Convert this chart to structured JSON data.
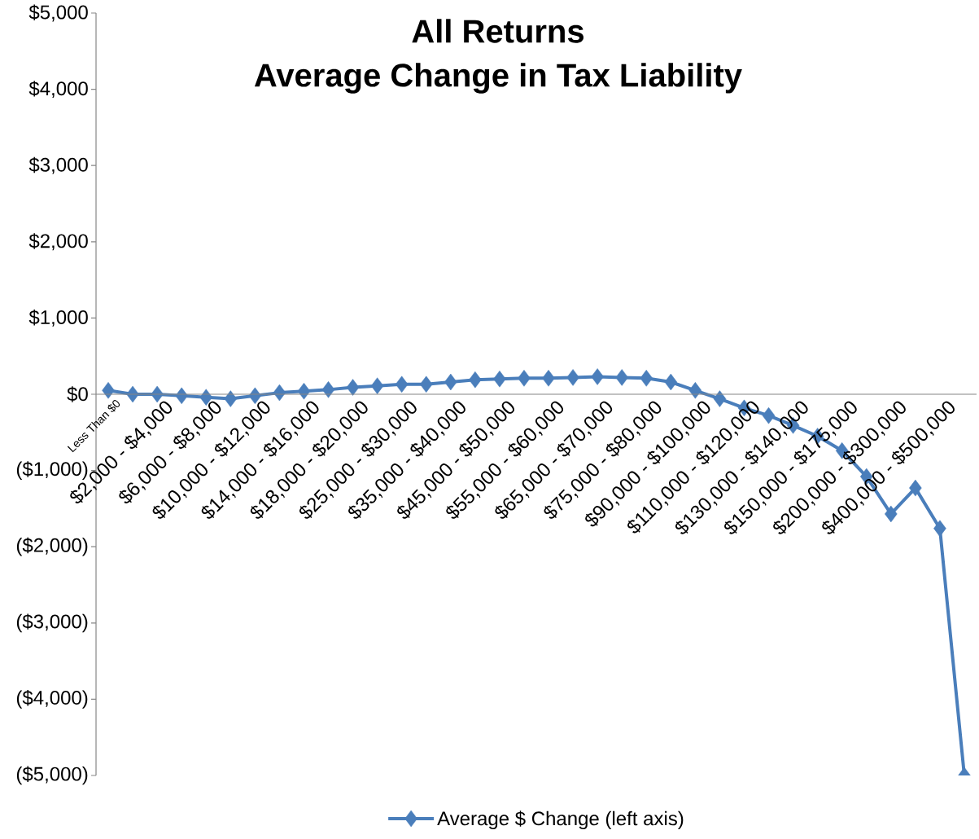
{
  "chart_data": {
    "type": "line",
    "title": "All Returns",
    "subtitle": "Average Change in Tax Liability",
    "categories": [
      "Less Than $0",
      null,
      "$2,000 - $4,000",
      null,
      "$6,000 - $8,000",
      null,
      "$10,000 - $12,000",
      null,
      "$14,000 - $16,000",
      null,
      "$18,000 - $20,000",
      null,
      "$25,000 - $30,000",
      null,
      "$35,000 - $40,000",
      null,
      "$45,000 - $50,000",
      null,
      "$55,000 - $60,000",
      null,
      "$65,000 - $70,000",
      null,
      "$75,000 - $80,000",
      null,
      "$90,000 - $100,000",
      null,
      "$110,000 - $120,000",
      null,
      "$130,000 - $140,000",
      null,
      "$150,000 - $175,000",
      null,
      "$200,000 - $300,000",
      null,
      "$400,000 - $500,000",
      null
    ],
    "series": [
      {
        "name": "Average $ Change (left axis)",
        "color": "#4a7ebb",
        "values": [
          50,
          0,
          0,
          -20,
          -40,
          -60,
          -20,
          20,
          40,
          60,
          90,
          110,
          130,
          130,
          160,
          190,
          200,
          210,
          210,
          220,
          230,
          220,
          210,
          160,
          50,
          -60,
          -180,
          -280,
          -410,
          -550,
          -740,
          -1080,
          -1570,
          -1230,
          -1760,
          -5000
        ]
      }
    ],
    "ylim": [
      -5000,
      5000
    ],
    "yticks": [
      {
        "value": -5000,
        "label": "($5,000)"
      },
      {
        "value": -4000,
        "label": "($4,000)"
      },
      {
        "value": -3000,
        "label": "($3,000)"
      },
      {
        "value": -2000,
        "label": "($2,000)"
      },
      {
        "value": -1000,
        "label": "($1,000)"
      },
      {
        "value": 0,
        "label": "$0"
      },
      {
        "value": 1000,
        "label": "$1,000"
      },
      {
        "value": 2000,
        "label": "$2,000"
      },
      {
        "value": 3000,
        "label": "$3,000"
      },
      {
        "value": 4000,
        "label": "$4,000"
      },
      {
        "value": 5000,
        "label": "$5,000"
      }
    ],
    "grid": false,
    "legend": "bottom",
    "marker": "diamond",
    "line_style": "solid"
  }
}
